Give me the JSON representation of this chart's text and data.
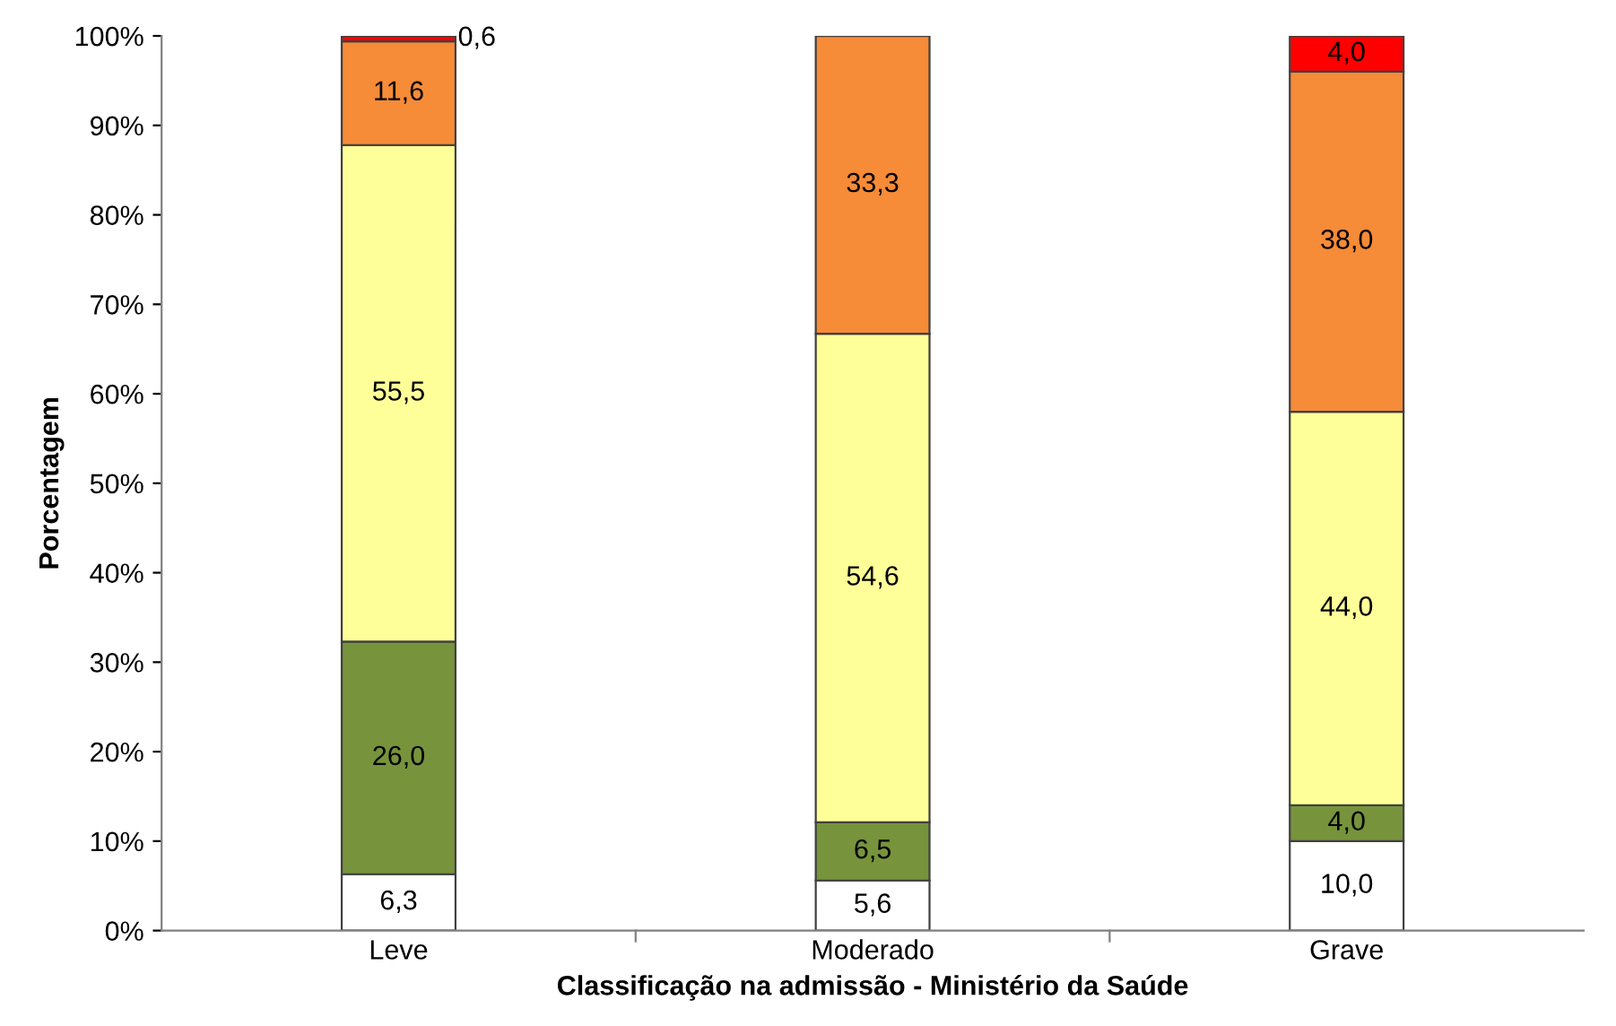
{
  "chart_data": {
    "type": "bar",
    "stacked": true,
    "xlabel": "Classificação na admissão - Ministério da Saúde",
    "ylabel": "Porcentagem",
    "categories": [
      "Leve",
      "Moderado",
      "Grave"
    ],
    "series": [
      {
        "color": "#ffffff",
        "values": [
          6.3,
          5.6,
          10.0
        ],
        "value_labels": [
          "6,3",
          "5,6",
          "10,0"
        ]
      },
      {
        "color": "#77933c",
        "values": [
          26.0,
          6.5,
          4.0
        ],
        "value_labels": [
          "26,0",
          "6,5",
          "4,0"
        ]
      },
      {
        "color": "#ffff99",
        "values": [
          55.5,
          54.6,
          44.0
        ],
        "value_labels": [
          "55,5",
          "54,6",
          "44,0"
        ]
      },
      {
        "color": "#f68b38",
        "values": [
          11.6,
          33.3,
          38.0
        ],
        "value_labels": [
          "11,6",
          "33,3",
          "38,0"
        ]
      },
      {
        "color": "#ff0000",
        "values": [
          0.6,
          null,
          4.0
        ],
        "value_labels": [
          "0,6",
          null,
          "4,0"
        ]
      }
    ],
    "ylim": [
      0,
      100
    ],
    "yticks": [
      {
        "value": 0,
        "label": "0%"
      },
      {
        "value": 10,
        "label": "10%"
      },
      {
        "value": 20,
        "label": "20%"
      },
      {
        "value": 30,
        "label": "30%"
      },
      {
        "value": 40,
        "label": "40%"
      },
      {
        "value": 50,
        "label": "50%"
      },
      {
        "value": 60,
        "label": "60%"
      },
      {
        "value": 70,
        "label": "70%"
      },
      {
        "value": 80,
        "label": "80%"
      },
      {
        "value": 90,
        "label": "90%"
      },
      {
        "value": 100,
        "label": "100%"
      }
    ],
    "grid": false,
    "legend": false
  }
}
